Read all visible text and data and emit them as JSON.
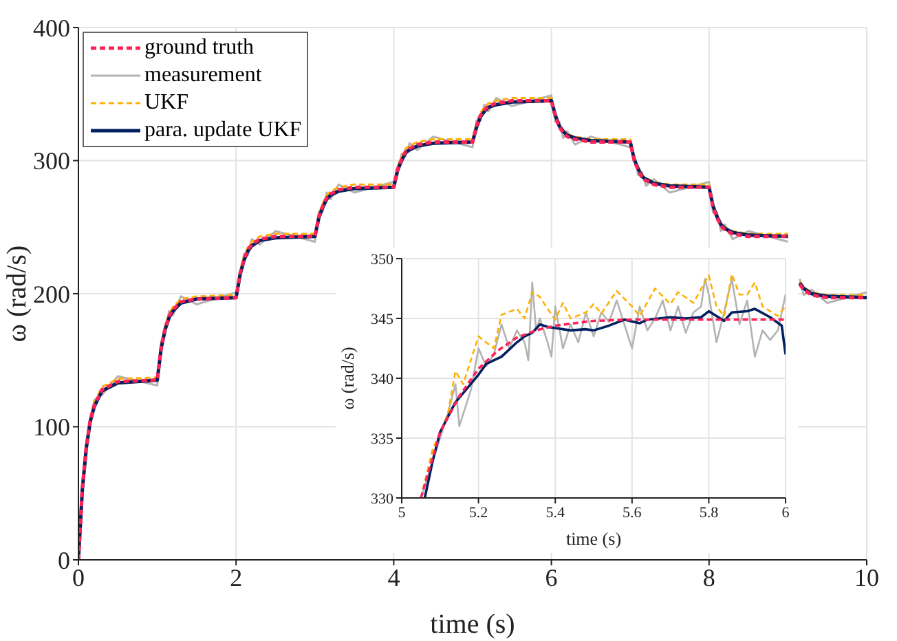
{
  "chart_data": [
    {
      "type": "line",
      "xlabel": "time (s)",
      "ylabel": "ω (rad/s)",
      "xlim": [
        0,
        10
      ],
      "xticks": [
        0,
        2,
        4,
        6,
        8,
        10
      ],
      "ylim": [
        0,
        400
      ],
      "yticks": [
        0,
        100,
        200,
        300,
        400
      ],
      "grid": true,
      "legend": "top left",
      "marker": "none",
      "x": [
        0,
        0.05,
        0.1,
        0.15,
        0.2,
        0.3,
        0.5,
        1,
        1.05,
        1.1,
        1.15,
        1.2,
        1.3,
        1.5,
        2,
        2.05,
        2.1,
        2.15,
        2.2,
        2.3,
        2.5,
        3,
        3.05,
        3.1,
        3.15,
        3.2,
        3.3,
        3.5,
        4,
        4.05,
        4.1,
        4.15,
        4.2,
        4.3,
        4.5,
        5,
        5.05,
        5.1,
        5.15,
        5.2,
        5.3,
        5.5,
        6,
        6.05,
        6.1,
        6.15,
        6.2,
        6.3,
        6.5,
        7,
        7.05,
        7.1,
        7.15,
        7.2,
        7.3,
        7.5,
        8,
        8.05,
        8.1,
        8.15,
        8.2,
        8.3,
        8.5,
        9,
        9.05,
        9.1,
        9.15,
        9.2,
        9.3,
        9.5,
        10
      ],
      "series": [
        {
          "name": "ground truth",
          "color": "#ff2257",
          "line_style": "dashed",
          "values": [
            0,
            54,
            85,
            105,
            116,
            128,
            134,
            135,
            160,
            174,
            183,
            188,
            194,
            196,
            197,
            215,
            226,
            233,
            237,
            241,
            243,
            243,
            258,
            266,
            272,
            275,
            278,
            280,
            280,
            294,
            301,
            307,
            309,
            312,
            314,
            314,
            326,
            334,
            338,
            341,
            343,
            345,
            345,
            333,
            325,
            321,
            318,
            316,
            314,
            314,
            300,
            293,
            287,
            285,
            282,
            280,
            280,
            265,
            257,
            251,
            248,
            245,
            243,
            243,
            null,
            null,
            207,
            203,
            199,
            197,
            197
          ]
        },
        {
          "name": "measurement",
          "color": "#b3b3b3",
          "line_style": "solid",
          "values": [
            3,
            50,
            88,
            101,
            120,
            124,
            138,
            131,
            164,
            170,
            187,
            184,
            198,
            192,
            201,
            211,
            230,
            229,
            241,
            237,
            247,
            239,
            262,
            262,
            276,
            271,
            282,
            276,
            284,
            290,
            305,
            303,
            313,
            308,
            318,
            310,
            330,
            330,
            342,
            337,
            347,
            341,
            349,
            329,
            329,
            317,
            322,
            312,
            318,
            310,
            304,
            289,
            291,
            281,
            286,
            276,
            284,
            261,
            261,
            247,
            252,
            241,
            247,
            239,
            null,
            null,
            211,
            199,
            203,
            193,
            201
          ]
        },
        {
          "name": "UKF",
          "color": "#ffb000",
          "line_style": "dashed",
          "values": [
            null,
            null,
            null,
            null,
            118,
            130,
            136,
            137,
            162,
            176,
            185,
            190,
            196,
            198,
            199,
            217,
            228,
            235,
            239,
            243,
            245,
            245,
            260,
            268,
            274,
            277,
            280,
            282,
            282,
            296,
            303,
            309,
            311,
            314,
            316,
            316,
            328,
            336,
            340,
            343,
            345,
            347,
            347,
            335,
            327,
            323,
            320,
            318,
            316,
            316,
            302,
            295,
            289,
            287,
            284,
            282,
            282,
            267,
            259,
            253,
            250,
            247,
            245,
            245,
            null,
            null,
            209,
            205,
            201,
            199,
            199
          ]
        },
        {
          "name": "para. update UKF",
          "color": "#002060",
          "line_style": "solid",
          "values": [
            0,
            53,
            84,
            104,
            115,
            127,
            133,
            135,
            159,
            173,
            182,
            187,
            193,
            196,
            197,
            214,
            225,
            232,
            236,
            240,
            242,
            243,
            257,
            265,
            271,
            274,
            277,
            279,
            280,
            293,
            300,
            306,
            308,
            311,
            313,
            314,
            325,
            333,
            337,
            340,
            342,
            344,
            345,
            334,
            326,
            322,
            319,
            317,
            315,
            314,
            301,
            294,
            288,
            286,
            283,
            281,
            280,
            266,
            258,
            252,
            249,
            246,
            244,
            243,
            null,
            null,
            208,
            204,
            200,
            198,
            197
          ]
        }
      ]
    },
    {
      "type": "line",
      "xlabel": "time (s)",
      "ylabel": "ω (rad/s)",
      "xlim": [
        5,
        6
      ],
      "xticks": [
        5,
        5.2,
        5.4,
        5.6,
        5.8,
        6
      ],
      "ylim": [
        330,
        350
      ],
      "yticks": [
        330,
        335,
        340,
        345,
        350
      ],
      "grid": true,
      "marker": "none",
      "series": [
        {
          "color": "#ff2257",
          "line_style": "dashed",
          "x": [
            5.05,
            5.1,
            5.15,
            5.2,
            5.25,
            5.3,
            5.35,
            5.4,
            5.5,
            5.6,
            6
          ],
          "values": [
            330,
            335.5,
            338.5,
            340.8,
            342.3,
            343.4,
            344,
            344.4,
            344.8,
            344.9,
            344.9
          ]
        },
        {
          "color": "#b3b3b3",
          "line_style": "solid",
          "x": [
            5.05,
            5.08,
            5.1,
            5.12,
            5.14,
            5.15,
            5.18,
            5.2,
            5.22,
            5.24,
            5.26,
            5.28,
            5.3,
            5.32,
            5.33,
            5.34,
            5.35,
            5.36,
            5.38,
            5.39,
            5.4,
            5.42,
            5.44,
            5.46,
            5.48,
            5.5,
            5.52,
            5.54,
            5.56,
            5.58,
            5.6,
            5.62,
            5.64,
            5.66,
            5.68,
            5.7,
            5.72,
            5.74,
            5.76,
            5.78,
            5.79,
            5.8,
            5.82,
            5.84,
            5.86,
            5.88,
            5.9,
            5.92,
            5.94,
            5.96,
            5.98,
            6
          ],
          "values": [
            330,
            333,
            335,
            337,
            339.5,
            336,
            339,
            342.5,
            341,
            342,
            344.5,
            342.5,
            344,
            343,
            341.5,
            348,
            344,
            345,
            343,
            341.8,
            346,
            342.5,
            344.5,
            343,
            345.5,
            343.5,
            345.5,
            344.7,
            346.5,
            344.5,
            342.5,
            346,
            344,
            345,
            346.5,
            344,
            346,
            343.8,
            345.5,
            346,
            348.3,
            347,
            343,
            345.5,
            348.3,
            344.5,
            346.5,
            341.8,
            344,
            343.2,
            344,
            347
          ]
        },
        {
          "color": "#ffb000",
          "line_style": "dashed",
          "x": [
            5.05,
            5.08,
            5.12,
            5.14,
            5.16,
            5.2,
            5.24,
            5.26,
            5.3,
            5.32,
            5.34,
            5.36,
            5.38,
            5.4,
            5.42,
            5.44,
            5.48,
            5.5,
            5.52,
            5.56,
            5.6,
            5.62,
            5.66,
            5.7,
            5.72,
            5.76,
            5.8,
            5.82,
            5.84,
            5.86,
            5.88,
            5.9,
            5.92,
            5.94,
            5.98,
            6
          ],
          "values": [
            330,
            334,
            337,
            340.6,
            339.5,
            343.5,
            342.5,
            345.3,
            345.8,
            345,
            347.2,
            346.8,
            345.8,
            344.9,
            346.3,
            345,
            345.5,
            346.2,
            345.4,
            347.3,
            346,
            345.2,
            347.5,
            346.2,
            347.2,
            346.3,
            348.6,
            346,
            345.2,
            348.7,
            347,
            347,
            348,
            346,
            345.2,
            346
          ]
        },
        {
          "color": "#002060",
          "line_style": "solid",
          "x": [
            5.06,
            5.08,
            5.1,
            5.14,
            5.2,
            5.22,
            5.26,
            5.3,
            5.32,
            5.34,
            5.36,
            5.38,
            5.4,
            5.44,
            5.48,
            5.5,
            5.54,
            5.58,
            5.62,
            5.64,
            5.7,
            5.74,
            5.78,
            5.8,
            5.84,
            5.86,
            5.9,
            5.92,
            5.96,
            5.99,
            6
          ],
          "values": [
            330,
            333,
            335.5,
            338,
            340.3,
            341.2,
            341.8,
            343,
            343.5,
            343.8,
            344.5,
            344.3,
            344.2,
            344,
            344.1,
            344,
            344.4,
            344.9,
            344.6,
            344.9,
            345.1,
            345,
            345.1,
            345.6,
            344.8,
            345.5,
            345.6,
            345.8,
            345.1,
            344.4,
            342
          ]
        }
      ]
    }
  ]
}
